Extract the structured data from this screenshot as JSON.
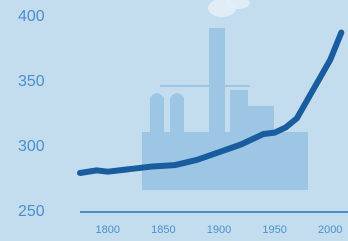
{
  "chart_data": {
    "type": "line",
    "x": [
      1775,
      1790,
      1800,
      1820,
      1840,
      1860,
      1880,
      1900,
      1920,
      1940,
      1950,
      1960,
      1970,
      1980,
      1990,
      2000,
      2010
    ],
    "series": [
      {
        "color": "#1a5d9e",
        "values": [
          280,
          282,
          281,
          283,
          285,
          286,
          290,
          296,
          302,
          310,
          311,
          315,
          322,
          337,
          352,
          367,
          388
        ]
      }
    ],
    "xlim": [
      1775,
      2016
    ],
    "xticks": [
      1800,
      1850,
      1900,
      1950,
      2000
    ],
    "ylim": [
      250,
      413
    ],
    "yticks": [
      250,
      300,
      350,
      400
    ],
    "grid": false
  }
}
